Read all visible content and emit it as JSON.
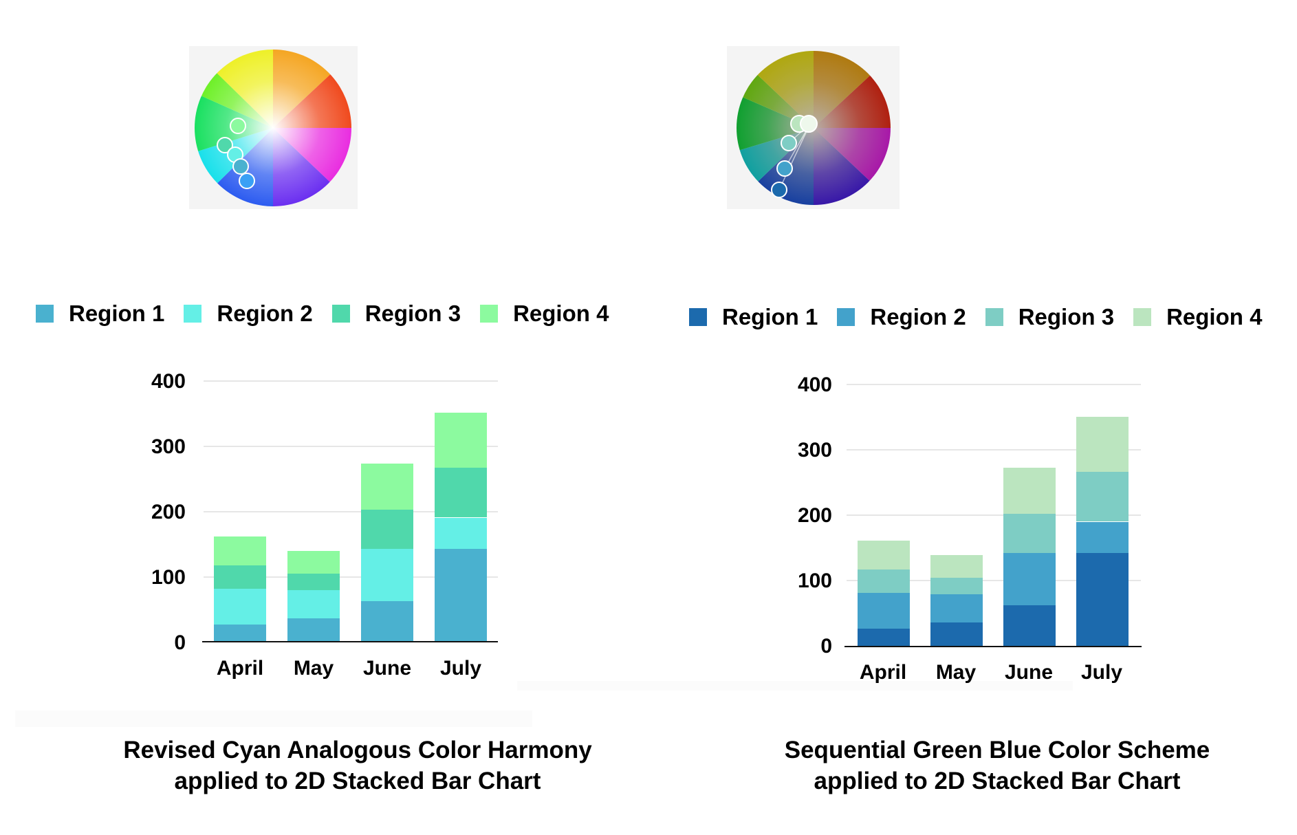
{
  "chart_data": [
    {
      "type": "bar",
      "stacked": true,
      "title": "Revised Cyan Analogous Color Harmony applied to 2D Stacked Bar Chart",
      "categories": [
        "April",
        "May",
        "June",
        "July"
      ],
      "series": [
        {
          "name": "Region 1",
          "color": "#4ab1cf",
          "values": [
            26,
            36,
            62,
            142
          ]
        },
        {
          "name": "Region 2",
          "color": "#64efe6",
          "values": [
            55,
            43,
            80,
            48
          ]
        },
        {
          "name": "Region 3",
          "color": "#50d8ab",
          "values": [
            36,
            25,
            60,
            76
          ]
        },
        {
          "name": "Region 4",
          "color": "#8cfa9f",
          "values": [
            44,
            35,
            71,
            85
          ]
        }
      ],
      "xlabel": "",
      "ylabel": "",
      "yticks": [
        0,
        100,
        200,
        300,
        400
      ],
      "ylim": [
        0,
        400
      ],
      "grid": true,
      "legend_position": "top"
    },
    {
      "type": "bar",
      "stacked": true,
      "title": "Sequential Green Blue Color Scheme applied to 2D Stacked Bar Chart",
      "categories": [
        "April",
        "May",
        "June",
        "July"
      ],
      "series": [
        {
          "name": "Region 1",
          "color": "#1c6aad",
          "values": [
            26,
            36,
            62,
            142
          ]
        },
        {
          "name": "Region 2",
          "color": "#43a2cb",
          "values": [
            55,
            43,
            80,
            48
          ]
        },
        {
          "name": "Region 3",
          "color": "#7ecdc4",
          "values": [
            36,
            25,
            60,
            76
          ]
        },
        {
          "name": "Region 4",
          "color": "#bbe5bf",
          "values": [
            44,
            35,
            71,
            85
          ]
        }
      ],
      "xlabel": "",
      "ylabel": "",
      "yticks": [
        0,
        100,
        200,
        300,
        400
      ],
      "ylim": [
        0,
        400
      ],
      "grid": true,
      "legend_position": "top"
    }
  ],
  "left": {
    "caption_line1": "Revised Cyan Analogous Color Harmony",
    "caption_line2": "applied to 2D Stacked Bar Chart",
    "wheel": {
      "icon": "color-wheel-icon",
      "handles": [
        "#8cfa9f",
        "#50d8ab",
        "#64efe6",
        "#4ab1cf",
        "#3aa0f5"
      ]
    },
    "legend": [
      "Region 1",
      "Region 2",
      "Region 3",
      "Region 4"
    ],
    "yticks": [
      "400",
      "300",
      "200",
      "100",
      "0"
    ],
    "months": [
      "April",
      "May",
      "June",
      "July"
    ]
  },
  "right": {
    "caption_line1": "Sequential Green Blue Color Scheme",
    "caption_line2": "applied to 2D Stacked Bar Chart",
    "wheel": {
      "icon": "color-wheel-icon",
      "handles": [
        "#bbe5bf",
        "#eef8ec",
        "#7ecdc4",
        "#43a2cb",
        "#1c6aad"
      ]
    },
    "legend": [
      "Region 1",
      "Region 2",
      "Region 3",
      "Region 4"
    ],
    "yticks": [
      "400",
      "300",
      "200",
      "100",
      "0"
    ],
    "months": [
      "April",
      "May",
      "June",
      "July"
    ]
  }
}
